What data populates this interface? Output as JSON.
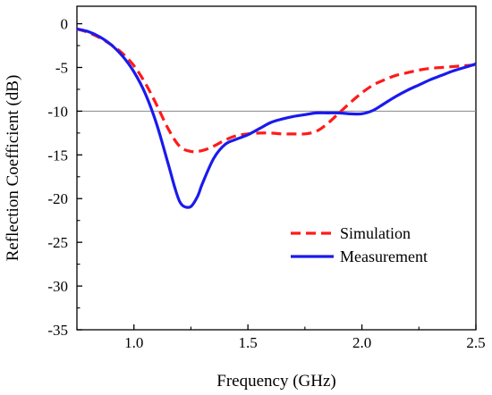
{
  "chart_data": {
    "type": "line",
    "title": "",
    "xlabel": "Frequency (GHz)",
    "ylabel": "Reflection Coefficient (dB)",
    "xlim": [
      0.75,
      2.5
    ],
    "ylim": [
      -35,
      2
    ],
    "xticks": [
      1.0,
      1.5,
      2.0,
      2.5
    ],
    "xtick_labels": [
      "1.0",
      "1.5",
      "2.0",
      "2.5"
    ],
    "yticks": [
      0,
      -5,
      -10,
      -15,
      -20,
      -25,
      -30,
      -35
    ],
    "ytick_labels": [
      "0",
      "-5",
      "-10",
      "-15",
      "-20",
      "-25",
      "-30",
      "-35"
    ],
    "reference_line": -10,
    "grid": false,
    "legend_position": "lower-right",
    "series": [
      {
        "name": "Simulation",
        "color": "#ff1a1a",
        "style": "dashed",
        "points": [
          [
            0.75,
            -0.6
          ],
          [
            0.8,
            -1.0
          ],
          [
            0.85,
            -1.6
          ],
          [
            0.9,
            -2.4
          ],
          [
            0.95,
            -3.4
          ],
          [
            1.0,
            -4.8
          ],
          [
            1.05,
            -6.8
          ],
          [
            1.1,
            -9.3
          ],
          [
            1.15,
            -12.0
          ],
          [
            1.2,
            -14.0
          ],
          [
            1.25,
            -14.6
          ],
          [
            1.3,
            -14.5
          ],
          [
            1.35,
            -14.0
          ],
          [
            1.4,
            -13.3
          ],
          [
            1.45,
            -12.8
          ],
          [
            1.5,
            -12.6
          ],
          [
            1.55,
            -12.5
          ],
          [
            1.6,
            -12.5
          ],
          [
            1.65,
            -12.6
          ],
          [
            1.7,
            -12.6
          ],
          [
            1.75,
            -12.6
          ],
          [
            1.8,
            -12.3
          ],
          [
            1.85,
            -11.4
          ],
          [
            1.9,
            -10.2
          ],
          [
            1.95,
            -9.0
          ],
          [
            2.0,
            -7.9
          ],
          [
            2.05,
            -7.0
          ],
          [
            2.1,
            -6.4
          ],
          [
            2.15,
            -5.9
          ],
          [
            2.2,
            -5.6
          ],
          [
            2.25,
            -5.3
          ],
          [
            2.3,
            -5.1
          ],
          [
            2.35,
            -5.0
          ],
          [
            2.4,
            -4.9
          ],
          [
            2.45,
            -4.8
          ],
          [
            2.5,
            -4.7
          ]
        ]
      },
      {
        "name": "Measurement",
        "color": "#1a1aee",
        "style": "solid",
        "points": [
          [
            0.75,
            -0.6
          ],
          [
            0.8,
            -0.9
          ],
          [
            0.85,
            -1.5
          ],
          [
            0.9,
            -2.4
          ],
          [
            0.95,
            -3.7
          ],
          [
            1.0,
            -5.5
          ],
          [
            1.05,
            -8.0
          ],
          [
            1.1,
            -11.5
          ],
          [
            1.15,
            -16.0
          ],
          [
            1.18,
            -18.8
          ],
          [
            1.2,
            -20.3
          ],
          [
            1.22,
            -20.9
          ],
          [
            1.25,
            -20.9
          ],
          [
            1.28,
            -19.7
          ],
          [
            1.3,
            -18.3
          ],
          [
            1.35,
            -15.4
          ],
          [
            1.4,
            -13.8
          ],
          [
            1.45,
            -13.2
          ],
          [
            1.5,
            -12.7
          ],
          [
            1.55,
            -12.0
          ],
          [
            1.6,
            -11.3
          ],
          [
            1.65,
            -10.9
          ],
          [
            1.7,
            -10.6
          ],
          [
            1.75,
            -10.4
          ],
          [
            1.8,
            -10.2
          ],
          [
            1.85,
            -10.2
          ],
          [
            1.9,
            -10.2
          ],
          [
            1.95,
            -10.3
          ],
          [
            2.0,
            -10.3
          ],
          [
            2.05,
            -9.9
          ],
          [
            2.1,
            -9.1
          ],
          [
            2.15,
            -8.3
          ],
          [
            2.2,
            -7.6
          ],
          [
            2.25,
            -7.0
          ],
          [
            2.3,
            -6.4
          ],
          [
            2.35,
            -5.9
          ],
          [
            2.4,
            -5.4
          ],
          [
            2.45,
            -5.0
          ],
          [
            2.5,
            -4.6
          ]
        ]
      }
    ]
  }
}
